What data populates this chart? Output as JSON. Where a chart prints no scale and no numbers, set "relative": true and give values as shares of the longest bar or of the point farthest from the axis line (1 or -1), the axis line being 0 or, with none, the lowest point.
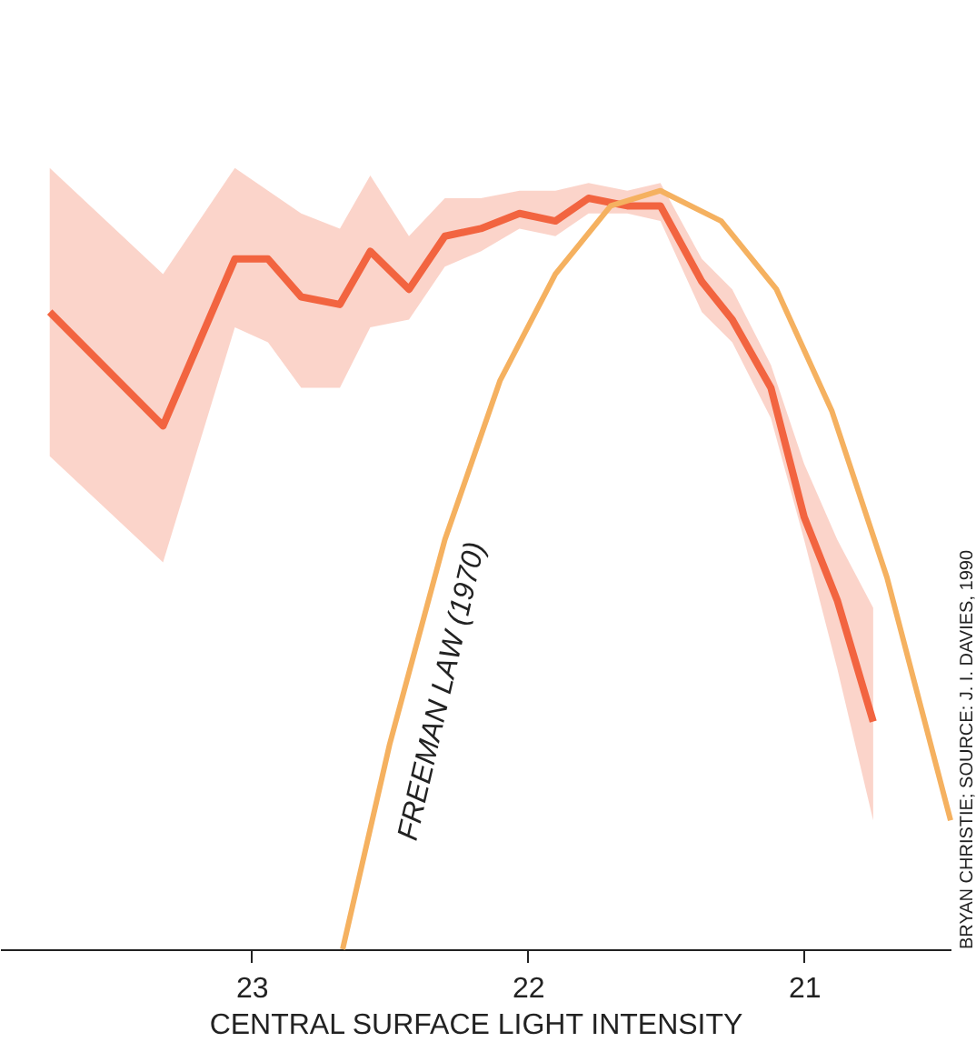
{
  "chart_data": {
    "type": "line",
    "relative": true,
    "xlabel": "CENTRAL SURFACE LIGHT INTENSITY",
    "xlim": [
      23.91,
      20.47
    ],
    "xticks": [
      23,
      22,
      21
    ],
    "grid": false,
    "marker": "none",
    "line_style": "solid",
    "series": [
      {
        "color": "#f26440",
        "x": [
          23.73,
          23.32,
          23.06,
          22.94,
          22.82,
          22.68,
          22.57,
          22.43,
          22.3,
          22.17,
          22.03,
          21.9,
          21.78,
          21.64,
          21.52,
          21.37,
          21.26,
          21.12,
          21.0,
          20.88,
          20.75
        ],
        "values": [
          0.84,
          0.69,
          0.91,
          0.91,
          0.86,
          0.85,
          0.92,
          0.87,
          0.94,
          0.95,
          0.97,
          0.96,
          0.99,
          0.98,
          0.98,
          0.88,
          0.83,
          0.74,
          0.57,
          0.46,
          0.3
        ],
        "upper": [
          1.03,
          0.89,
          1.03,
          1.0,
          0.97,
          0.95,
          1.02,
          0.94,
          0.99,
          0.99,
          1.0,
          1.0,
          1.01,
          1.0,
          1.01,
          0.91,
          0.87,
          0.77,
          0.64,
          0.54,
          0.45
        ],
        "lower": [
          0.65,
          0.51,
          0.82,
          0.8,
          0.74,
          0.74,
          0.82,
          0.83,
          0.9,
          0.92,
          0.95,
          0.94,
          0.97,
          0.97,
          0.96,
          0.84,
          0.8,
          0.7,
          0.54,
          0.37,
          0.17
        ]
      },
      {
        "color": "#f5b160",
        "x": [
          22.67,
          22.5,
          22.3,
          22.1,
          21.9,
          21.7,
          21.52,
          21.3,
          21.1,
          20.9,
          20.7,
          20.47
        ],
        "values": [
          0.0,
          0.27,
          0.54,
          0.75,
          0.89,
          0.98,
          1.0,
          0.96,
          0.87,
          0.71,
          0.49,
          0.17
        ]
      }
    ],
    "annotations": [
      "FREEMAN LAW (1970)",
      "BRYAN CHRISTIE; SOURCE: J. I. DAVIES, 1990"
    ]
  }
}
